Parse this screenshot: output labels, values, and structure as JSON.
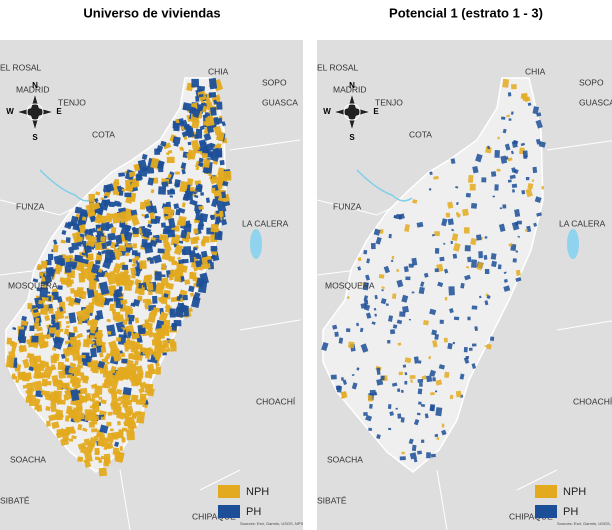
{
  "maps": [
    {
      "title": "Universo de viviendas"
    },
    {
      "title": "Potencial 1 (estrato 1 - 3)"
    }
  ],
  "places": [
    "EL ROSAL",
    "MADRID",
    "TENJO",
    "CHIA",
    "SOPO",
    "GUASCA",
    "COTA",
    "FUNZA",
    "LA CALERA",
    "MOSQUERA",
    "CHOACHÍ",
    "SOACHA",
    "SIBATÉ",
    "CHIPAQUE"
  ],
  "compass": [
    "N",
    "S",
    "E",
    "W"
  ],
  "legend": [
    {
      "label": "NPH",
      "color": "#e3aa1f"
    },
    {
      "label": "PH",
      "color": "#1c4f98"
    }
  ],
  "source": "Sources: Esri, Garmin, USGS, NPS"
}
